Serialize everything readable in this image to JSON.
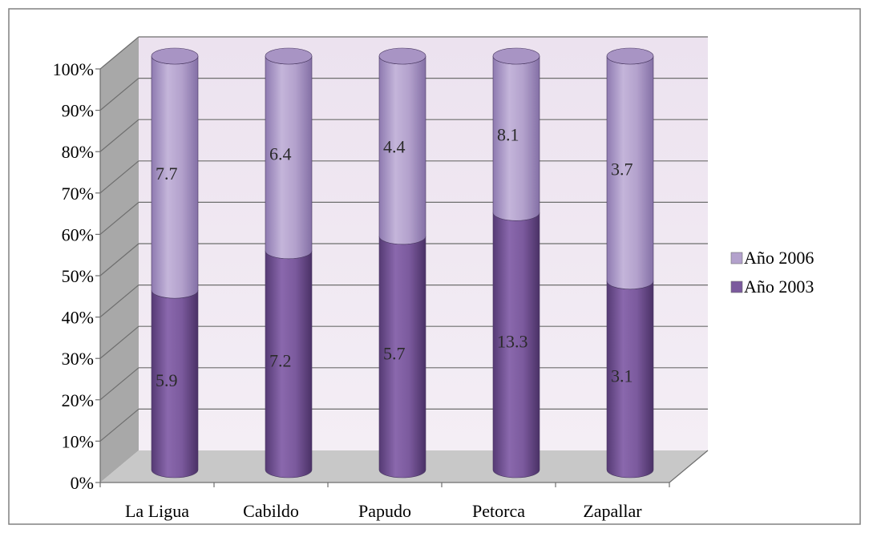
{
  "chart_data": {
    "type": "bar",
    "stacked": "percent",
    "style": "3d-cylinder",
    "categories": [
      "La Ligua",
      "Cabildo",
      "Papudo",
      "Petorca",
      "Zapallar"
    ],
    "series": [
      {
        "name": "Año 2003",
        "values": [
          5.9,
          7.2,
          5.7,
          13.3,
          3.1
        ],
        "color": "#7b5a9d"
      },
      {
        "name": "Año 2006",
        "values": [
          7.7,
          6.4,
          4.4,
          8.1,
          3.7
        ],
        "color": "#b3a1cc"
      }
    ],
    "y_ticks": [
      "0%",
      "10%",
      "20%",
      "30%",
      "40%",
      "50%",
      "60%",
      "70%",
      "80%",
      "90%",
      "100%"
    ],
    "ylim": [
      0,
      100
    ],
    "grid": true,
    "legend_position": "right",
    "legend_order": [
      "Año 2006",
      "Año 2003"
    ],
    "colors": {
      "wall": "#efe6f2",
      "floor": "#c8c8c8",
      "side_wall": "#a8a8a8",
      "frame": "#808080"
    }
  }
}
